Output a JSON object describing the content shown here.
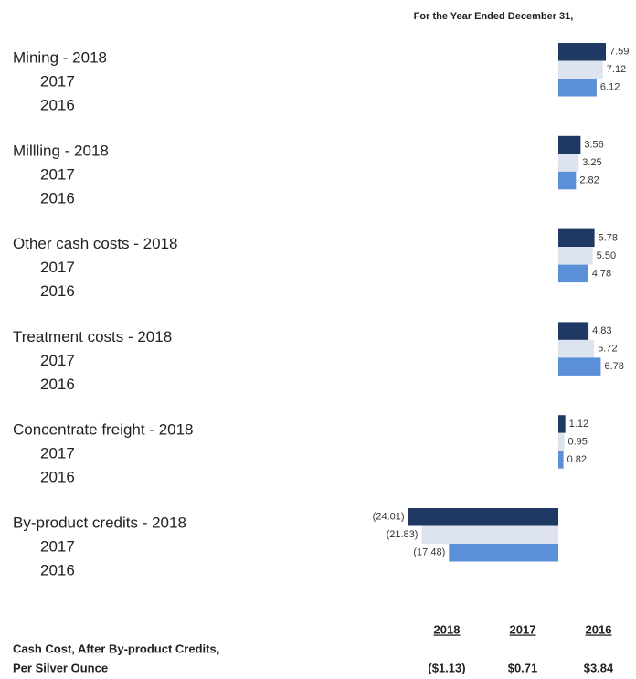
{
  "chart_data": {
    "type": "bar",
    "orientation": "horizontal",
    "subtitle": "For the Year Ended December 31,",
    "categories": [
      "Mining  - 2018",
      "Millling  - 2018",
      "Other cash costs  - 2018",
      "Treatment costs  - 2018",
      "Concentrate freight  - 2018",
      "By-product credits  - 2018"
    ],
    "series": [
      {
        "name": "2018",
        "color": "#1f3864",
        "values": [
          7.59,
          3.56,
          5.78,
          4.83,
          1.12,
          -24.01
        ],
        "value_labels": [
          "7.59",
          "3.56",
          "5.78",
          "4.83",
          "1.12",
          "(24.01)"
        ]
      },
      {
        "name": "2017",
        "color": "#dde4f0",
        "values": [
          7.12,
          3.25,
          5.5,
          5.72,
          0.95,
          -21.83
        ],
        "value_labels": [
          "7.12",
          "3.25",
          "5.50",
          "5.72",
          "0.95",
          "(21.83)"
        ]
      },
      {
        "name": "2016",
        "color": "#5b8fd8",
        "values": [
          6.12,
          2.82,
          4.78,
          6.78,
          0.82,
          -17.48
        ],
        "value_labels": [
          "6.12",
          "2.82",
          "4.78",
          "6.78",
          "0.82",
          "(17.48)"
        ]
      }
    ]
  },
  "summary": {
    "label": [
      "Cash Cost, After By-product Credits,",
      "Per Silver Ounce"
    ],
    "columns": [
      "2018",
      "2017",
      "2016"
    ],
    "values": [
      "($1.13)",
      "$0.71",
      "$3.84"
    ]
  }
}
